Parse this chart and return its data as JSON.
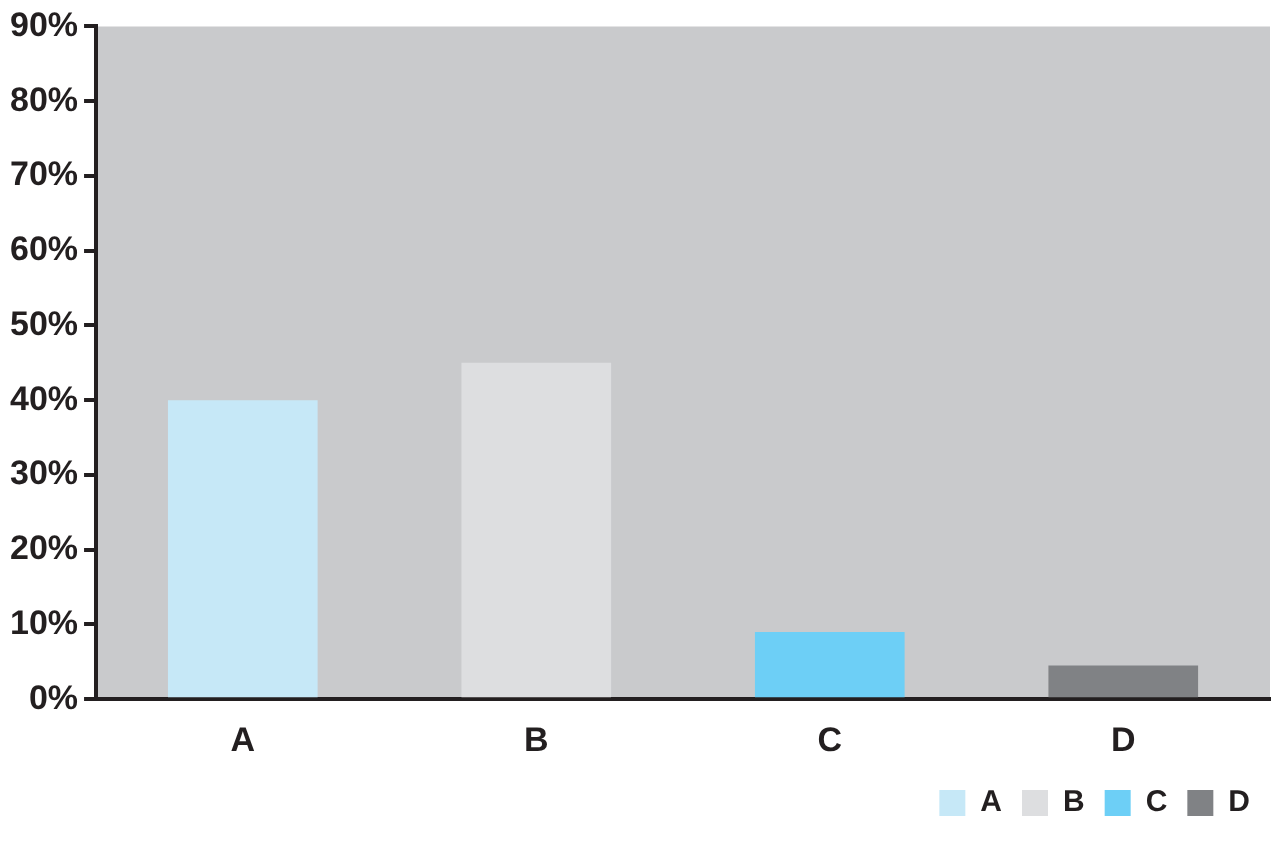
{
  "chart_data": {
    "type": "bar",
    "categories": [
      "A",
      "B",
      "C",
      "D"
    ],
    "series": [
      {
        "name": "A",
        "color": "#c6e8f7",
        "values": [
          40,
          null,
          null,
          null
        ]
      },
      {
        "name": "B",
        "color": "#dddee0",
        "values": [
          null,
          45,
          null,
          null
        ]
      },
      {
        "name": "C",
        "color": "#6dcff6",
        "values": [
          null,
          null,
          9,
          null
        ]
      },
      {
        "name": "D",
        "color": "#808285",
        "values": [
          null,
          null,
          null,
          4.5
        ]
      }
    ],
    "ylim": [
      0,
      90
    ],
    "yticks": [
      {
        "value": 0,
        "label": "0%"
      },
      {
        "value": 10,
        "label": "10%"
      },
      {
        "value": 20,
        "label": "20%"
      },
      {
        "value": 30,
        "label": "30%"
      },
      {
        "value": 40,
        "label": "40%"
      },
      {
        "value": 50,
        "label": "50%"
      },
      {
        "value": 60,
        "label": "60%"
      },
      {
        "value": 70,
        "label": "70%"
      },
      {
        "value": 80,
        "label": "80%"
      },
      {
        "value": 90,
        "label": "90%"
      }
    ],
    "grid": false,
    "legend": "bottom right"
  }
}
